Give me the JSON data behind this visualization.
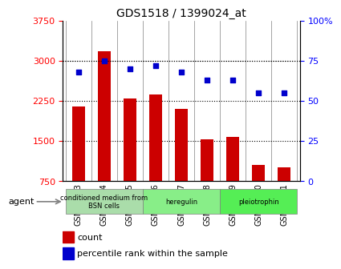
{
  "title": "GDS1518 / 1399024_at",
  "categories": [
    "GSM76383",
    "GSM76384",
    "GSM76385",
    "GSM76386",
    "GSM76387",
    "GSM76388",
    "GSM76389",
    "GSM76390",
    "GSM76391"
  ],
  "bar_values": [
    2150,
    3175,
    2300,
    2375,
    2100,
    1530,
    1580,
    1050,
    1000
  ],
  "percentile_values": [
    68,
    75,
    70,
    72,
    68,
    63,
    63,
    55,
    55
  ],
  "bar_color": "#cc0000",
  "dot_color": "#0000cc",
  "ylim_left": [
    750,
    3750
  ],
  "ylim_right": [
    0,
    100
  ],
  "yticks_left": [
    750,
    1500,
    2250,
    3000,
    3750
  ],
  "yticks_right": [
    0,
    25,
    50,
    75,
    100
  ],
  "grid_values": [
    1500,
    2250,
    3000
  ],
  "groups": [
    {
      "label": "conditioned medium from\nBSN cells",
      "start": 0,
      "end": 3,
      "color": "#aaddaa"
    },
    {
      "label": "heregulin",
      "start": 3,
      "end": 6,
      "color": "#88ee88"
    },
    {
      "label": "pleiotrophin",
      "start": 6,
      "end": 9,
      "color": "#55ee55"
    }
  ],
  "agent_label": "agent",
  "legend_count_label": "count",
  "legend_pct_label": "percentile rank within the sample",
  "bar_width": 0.5
}
